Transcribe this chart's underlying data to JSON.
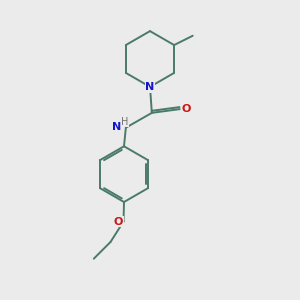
{
  "bg_color": "#ebebeb",
  "bond_color": "#4a7a6a",
  "N_color": "#1515cc",
  "O_color": "#cc1515",
  "H_color": "#707070",
  "line_width": 1.4,
  "font_size_atom": 8.0,
  "font_size_H": 7.0,
  "xlim": [
    0,
    3.0
  ],
  "ylim": [
    0,
    3.2
  ]
}
